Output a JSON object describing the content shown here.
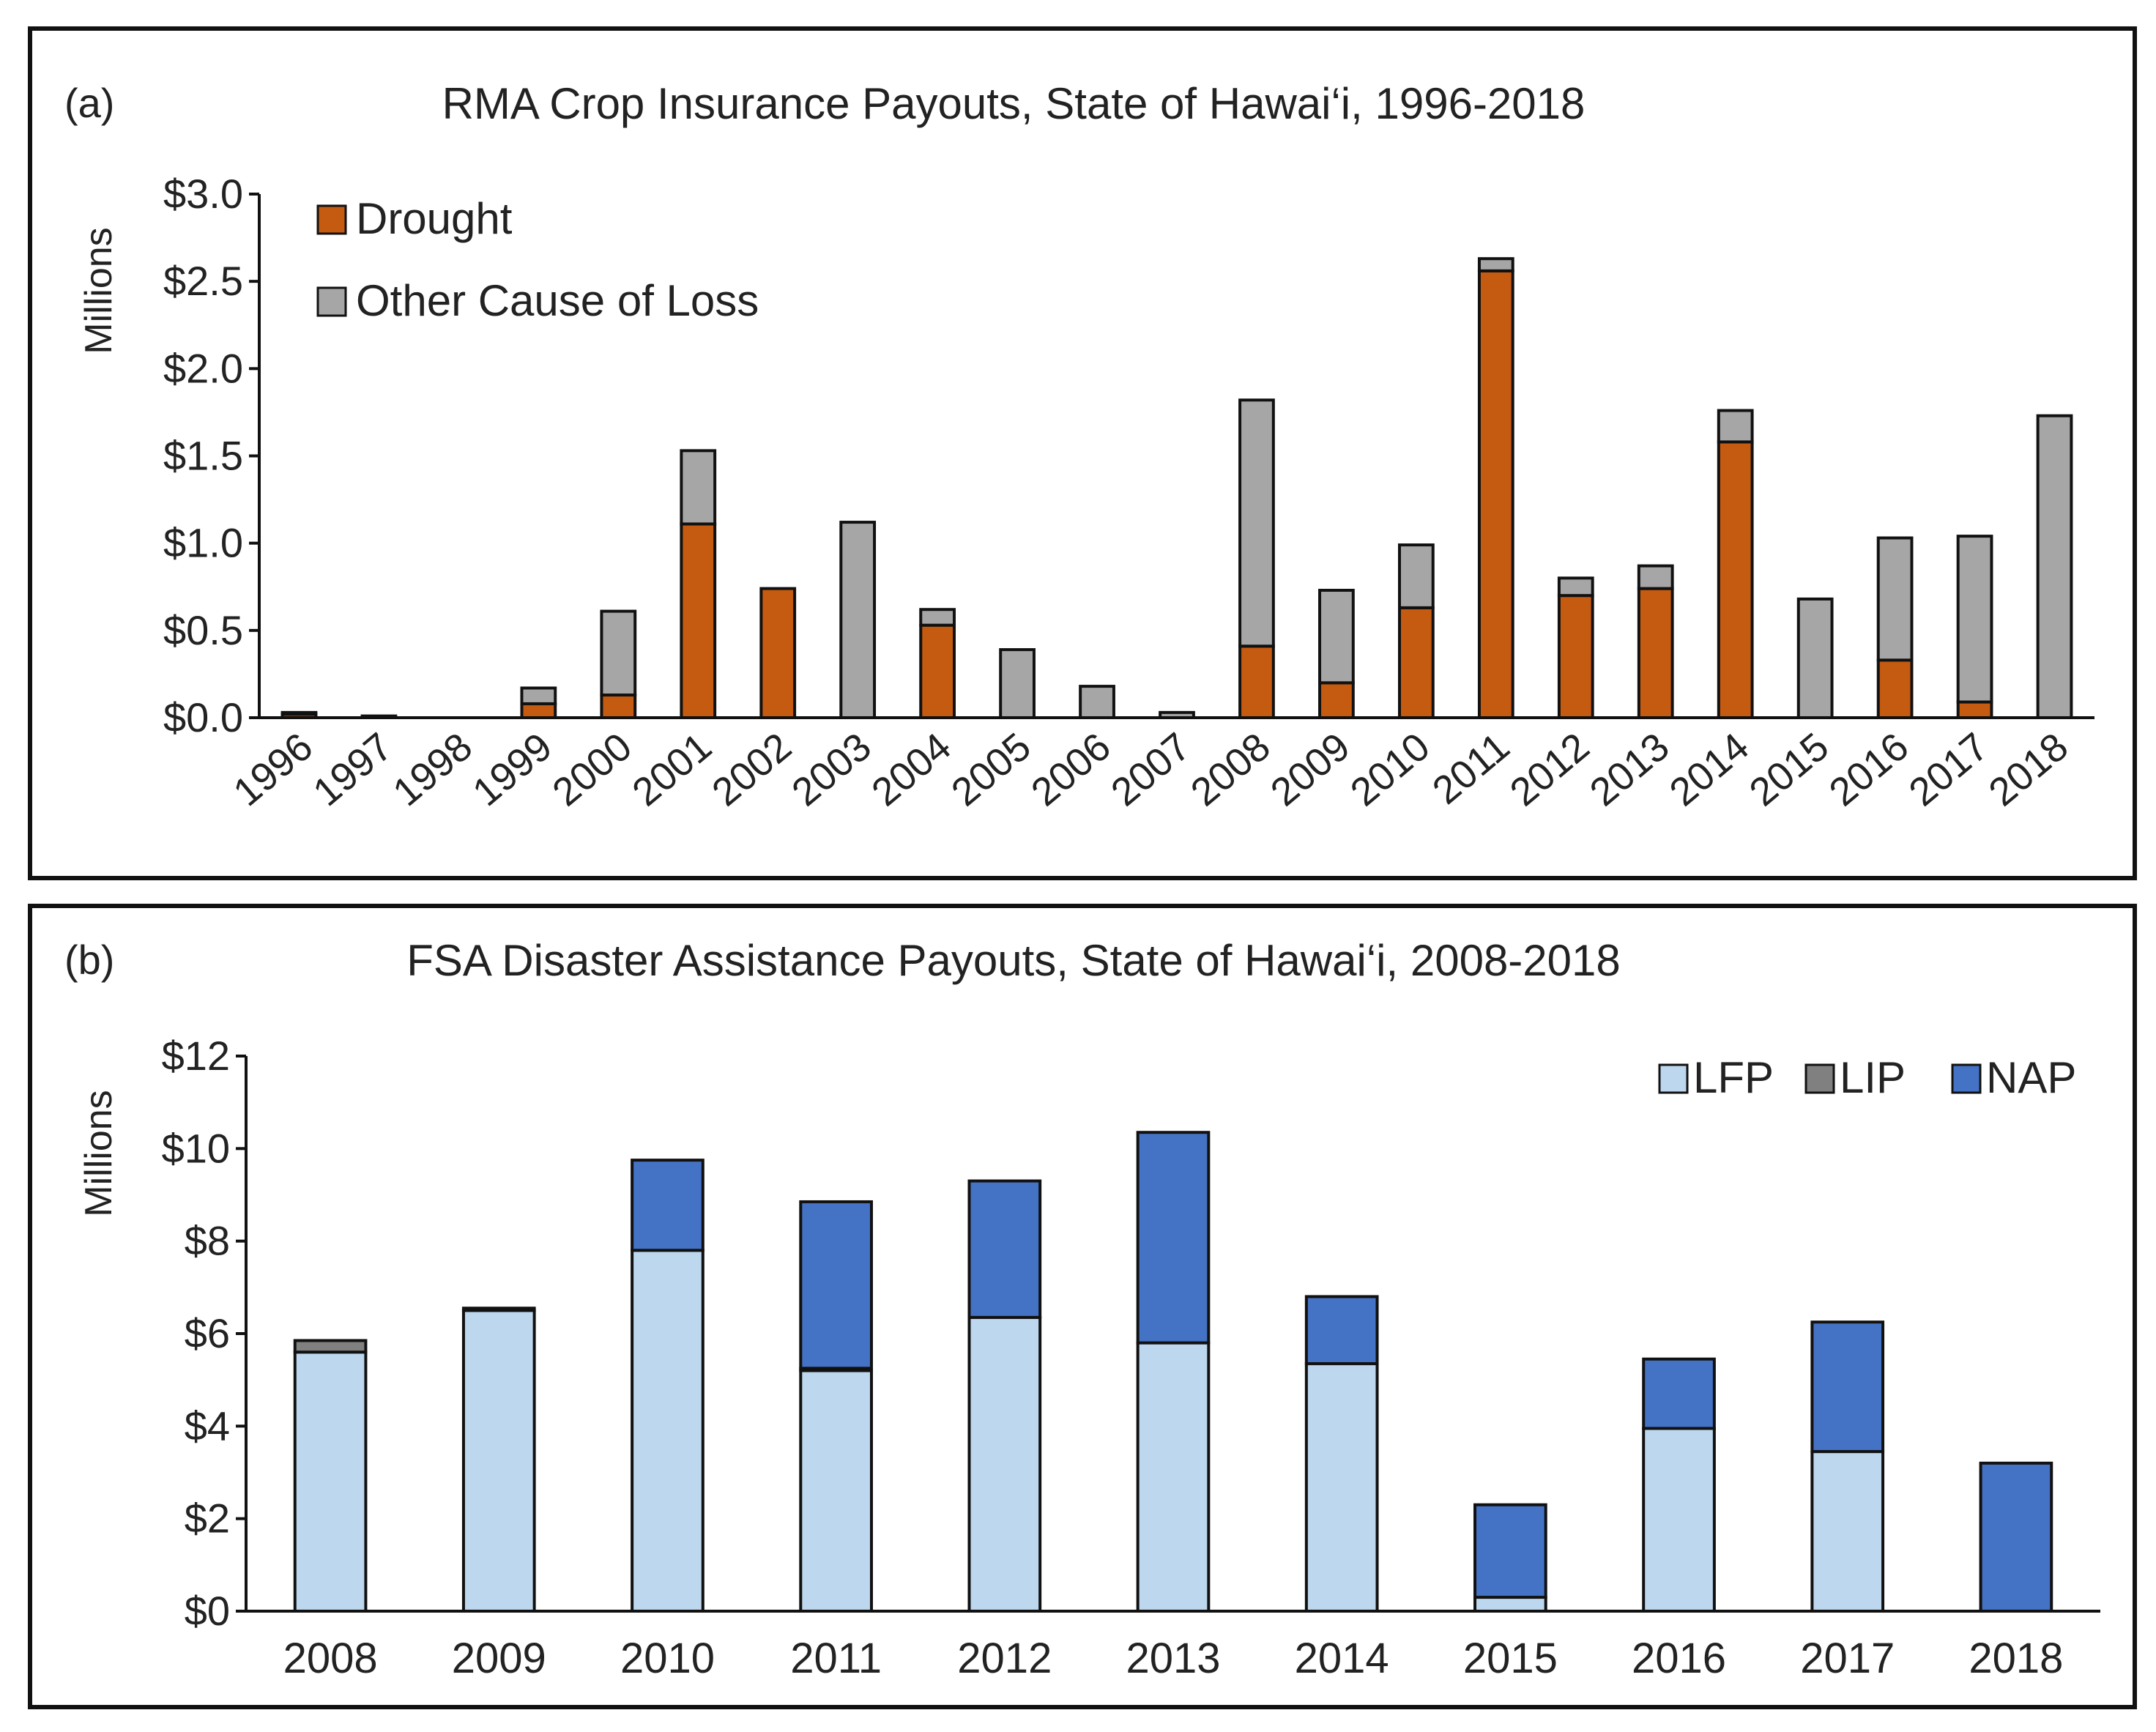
{
  "chart_data": [
    {
      "type": "bar",
      "stacked": true,
      "panel_label": "(a)",
      "title": "RMA Crop Insurance Payouts, State of Hawai‘i, 1996-2018",
      "ylabel": "Millions",
      "xlabel": "",
      "ylim": [
        0,
        3.0
      ],
      "ytick_values": [
        0,
        0.5,
        1.0,
        1.5,
        2.0,
        2.5,
        3.0
      ],
      "ytick_labels": [
        "$0.0",
        "$0.5",
        "$1.0",
        "$1.5",
        "$2.0",
        "$2.5",
        "$3.0"
      ],
      "categories": [
        "1996",
        "1997",
        "1998",
        "1999",
        "2000",
        "2001",
        "2002",
        "2003",
        "2004",
        "2005",
        "2006",
        "2007",
        "2008",
        "2009",
        "2010",
        "2011",
        "2012",
        "2013",
        "2014",
        "2015",
        "2016",
        "2017",
        "2018"
      ],
      "legend_position": "top-left",
      "series": [
        {
          "name": "Drought",
          "color": "#C55A11",
          "values": [
            0.02,
            0.0,
            0.0,
            0.08,
            0.13,
            1.11,
            0.74,
            0.0,
            0.53,
            0.0,
            0.0,
            0.0,
            0.41,
            0.2,
            0.63,
            2.56,
            0.7,
            0.74,
            1.58,
            0.0,
            0.33,
            0.09,
            0.0
          ]
        },
        {
          "name": "Other Cause of Loss",
          "color": "#A6A6A6",
          "values": [
            0.01,
            0.01,
            0.0,
            0.09,
            0.48,
            0.42,
            0.0,
            1.12,
            0.09,
            0.39,
            0.18,
            0.03,
            1.41,
            0.53,
            0.36,
            0.07,
            0.1,
            0.13,
            0.18,
            0.68,
            0.7,
            0.95,
            1.73
          ]
        }
      ]
    },
    {
      "type": "bar",
      "stacked": true,
      "panel_label": "(b)",
      "title": "FSA Disaster Assistance Payouts, State of Hawai‘i, 2008-2018",
      "ylabel": "Millions",
      "xlabel": "",
      "ylim": [
        0,
        12
      ],
      "ytick_values": [
        0,
        2,
        4,
        6,
        8,
        10,
        12
      ],
      "ytick_labels": [
        "$0",
        "$2",
        "$4",
        "$6",
        "$8",
        "$10",
        "$12"
      ],
      "categories": [
        "2008",
        "2009",
        "2010",
        "2011",
        "2012",
        "2013",
        "2014",
        "2015",
        "2016",
        "2017",
        "2018"
      ],
      "legend_position": "top-right",
      "series": [
        {
          "name": "LFP",
          "color": "#BDD7EE",
          "values": [
            5.6,
            6.5,
            7.8,
            5.2,
            6.35,
            5.8,
            5.35,
            0.3,
            3.95,
            3.45,
            0.0
          ]
        },
        {
          "name": "LIP",
          "color": "#808080",
          "values": [
            0.25,
            0.05,
            0.0,
            0.05,
            0.0,
            0.0,
            0.0,
            0.0,
            0.0,
            0.0,
            0.0
          ]
        },
        {
          "name": "NAP",
          "color": "#4472C4",
          "values": [
            0.0,
            0.0,
            1.95,
            3.6,
            2.95,
            4.55,
            1.45,
            2.0,
            1.5,
            2.8,
            3.2
          ]
        }
      ]
    }
  ]
}
